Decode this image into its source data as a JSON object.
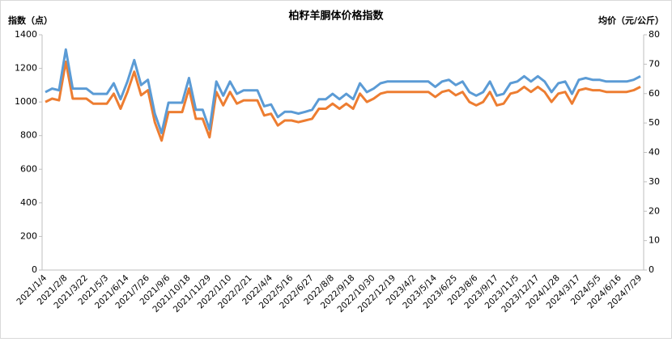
{
  "chart_data": {
    "type": "line",
    "title": "柏籽羊胴体价格指数",
    "y_label": "指数（点）",
    "y2_label": "均价（元/公斤）",
    "categories": [
      "2021/1/4",
      null,
      null,
      "2021/2/8",
      null,
      null,
      "2021/3/22",
      null,
      null,
      "2021/5/3",
      null,
      null,
      "2021/6/14",
      null,
      null,
      "2021/7/26",
      null,
      null,
      "2021/9/6",
      null,
      null,
      "2021/10/18",
      null,
      null,
      "2021/11/29",
      null,
      null,
      "2022/1/10",
      null,
      null,
      "2022/2/21",
      null,
      null,
      "2022/4/4",
      null,
      null,
      "2022/5/16",
      null,
      null,
      "2022/6/27",
      null,
      null,
      "2022/8/8",
      null,
      null,
      "2022/9/18",
      null,
      null,
      "2022/10/30",
      null,
      null,
      "2022/12/19",
      null,
      null,
      "2023/4/2",
      null,
      null,
      "2023/5/14",
      null,
      null,
      "2023/6/25",
      null,
      null,
      "2023/8/6",
      null,
      null,
      "2023/9/17",
      null,
      null,
      "2023/11/5",
      null,
      null,
      "2023/12/17",
      null,
      null,
      "2024/1/28",
      null,
      null,
      "2024/3/17",
      null,
      null,
      "2024/5/5",
      null,
      null,
      "2024/6/16",
      null,
      null,
      "2024/7/29"
    ],
    "series": [
      {
        "name": "指数",
        "color": "#ed7d31",
        "axis": "y",
        "values": [
          1000,
          1020,
          1010,
          1240,
          1020,
          1020,
          1020,
          990,
          990,
          990,
          1050,
          960,
          1060,
          1180,
          1040,
          1070,
          880,
          770,
          940,
          940,
          940,
          1080,
          900,
          900,
          790,
          1060,
          980,
          1060,
          990,
          1010,
          1010,
          1010,
          920,
          930,
          860,
          890,
          890,
          880,
          890,
          900,
          960,
          960,
          990,
          960,
          990,
          960,
          1050,
          1000,
          1020,
          1050,
          1060,
          1060,
          1060,
          1060,
          1060,
          1060,
          1060,
          1030,
          1060,
          1070,
          1040,
          1060,
          1000,
          980,
          1000,
          1060,
          980,
          990,
          1050,
          1060,
          1090,
          1060,
          1090,
          1060,
          1000,
          1050,
          1060,
          990,
          1070,
          1080,
          1070,
          1070,
          1060,
          1060,
          1060,
          1060,
          1070,
          1090
        ]
      },
      {
        "name": "均价",
        "color": "#5b9bd5",
        "axis": "y2",
        "values": [
          60.5,
          61.7,
          61.1,
          75.0,
          61.7,
          61.7,
          61.7,
          59.9,
          59.9,
          59.9,
          63.5,
          58.1,
          64.1,
          71.4,
          62.9,
          64.7,
          53.2,
          46.6,
          56.9,
          56.9,
          56.9,
          65.3,
          54.5,
          54.5,
          47.8,
          64.1,
          59.3,
          64.1,
          59.9,
          61.1,
          61.1,
          61.1,
          55.7,
          56.3,
          52.0,
          53.8,
          53.8,
          53.2,
          53.8,
          54.5,
          58.1,
          58.1,
          59.9,
          58.1,
          59.9,
          58.1,
          63.5,
          60.5,
          61.7,
          63.5,
          64.1,
          64.1,
          64.1,
          64.1,
          64.1,
          64.1,
          64.1,
          62.3,
          64.1,
          64.7,
          62.9,
          64.1,
          60.5,
          59.3,
          60.5,
          64.1,
          59.3,
          59.9,
          63.5,
          64.1,
          65.9,
          64.1,
          65.9,
          64.1,
          60.5,
          63.5,
          64.1,
          59.9,
          64.7,
          65.3,
          64.7,
          64.7,
          64.1,
          64.1,
          64.1,
          64.1,
          64.7,
          65.9
        ]
      }
    ],
    "ylim": [
      0,
      1400
    ],
    "yticks": [
      0,
      200,
      400,
      600,
      800,
      1000,
      1200,
      1400
    ],
    "y2lim": [
      0,
      80
    ],
    "y2ticks": [
      0,
      10,
      20,
      30,
      40,
      50,
      60,
      70,
      80
    ]
  }
}
